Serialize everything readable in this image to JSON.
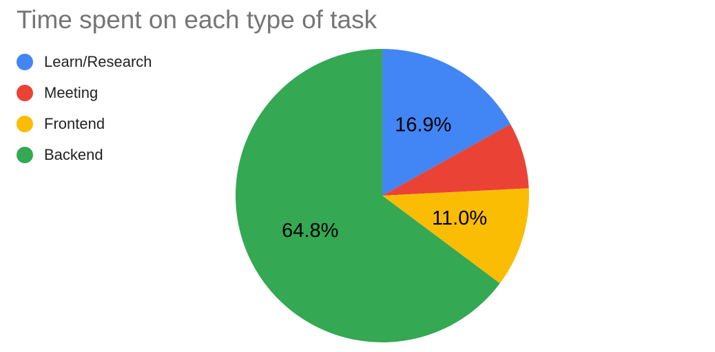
{
  "chart_data": {
    "type": "pie",
    "title": "Time spent on each type of task",
    "legend_position": "left",
    "slices": [
      {
        "name": "Learn/Research",
        "value": 16.9,
        "label": "16.9%",
        "color": "#4285F4"
      },
      {
        "name": "Meeting",
        "value": 7.3,
        "label": "",
        "color": "#EA4335"
      },
      {
        "name": "Frontend",
        "value": 11.0,
        "label": "11.0%",
        "color": "#FBBC04"
      },
      {
        "name": "Backend",
        "value": 64.8,
        "label": "64.8%",
        "color": "#34A853"
      }
    ]
  }
}
